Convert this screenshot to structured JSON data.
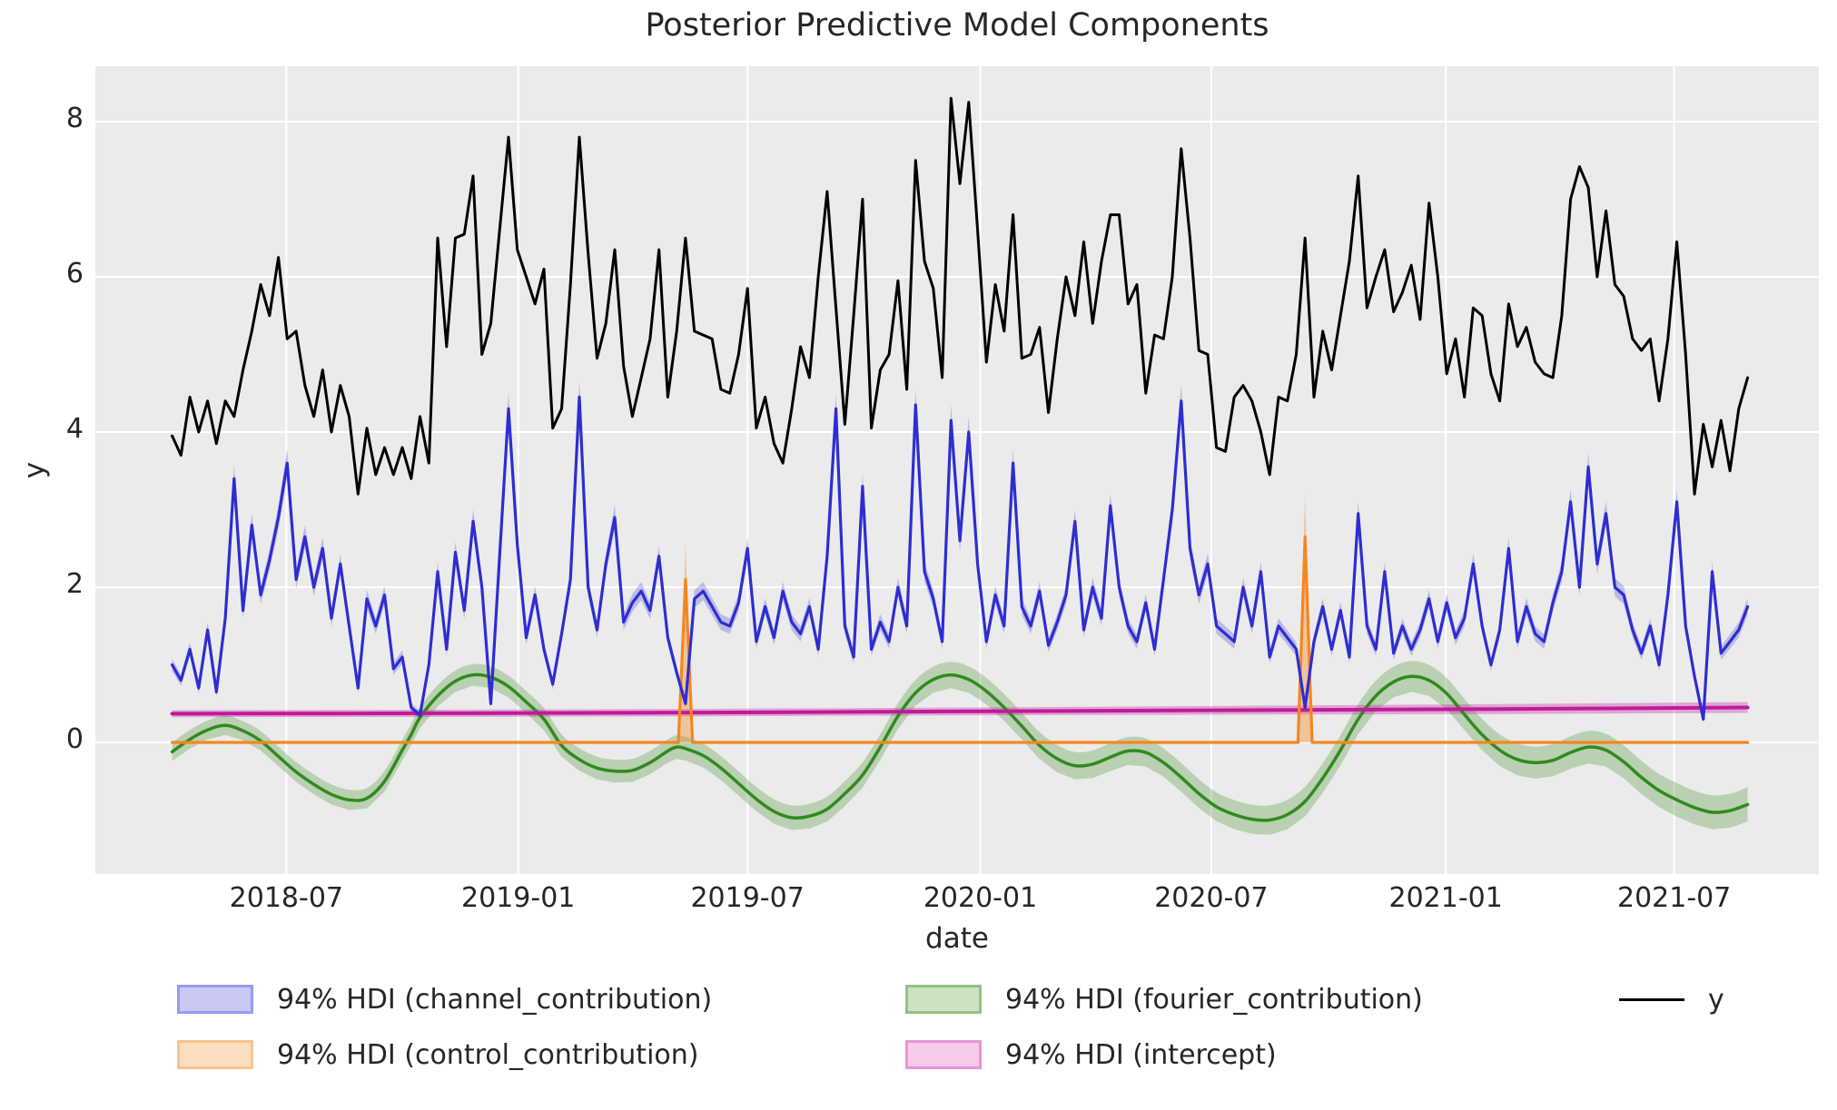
{
  "chart_data": {
    "type": "line",
    "title": "Posterior Predictive Model Components",
    "xlabel": "date",
    "ylabel": "y",
    "x_tick_labels": [
      "2018-07",
      "2019-01",
      "2019-07",
      "2020-01",
      "2020-07",
      "2021-01",
      "2021-07"
    ],
    "x_tick_weeks": [
      12.9,
      39.1,
      65.0,
      91.3,
      117.4,
      143.9,
      169.7
    ],
    "y_tick_labels": [
      "8",
      "6",
      "4",
      "2",
      "0"
    ],
    "y_tick_values": [
      8,
      6,
      4,
      2,
      0
    ],
    "ylim": [
      -1.7,
      8.71
    ],
    "x_range_weeks": [
      0,
      178
    ],
    "n_points": 179,
    "grid": true,
    "plot_background": "#ebebeb",
    "grid_color": "#ffffff",
    "legend_position": "below-two-columns-plus-line",
    "series": [
      {
        "name": "y",
        "legend_label": "y",
        "kind": "line",
        "color": "#000000",
        "values": [
          3.95,
          3.7,
          4.45,
          4.0,
          4.4,
          3.85,
          4.4,
          4.2,
          4.8,
          5.3,
          5.9,
          5.5,
          6.25,
          5.2,
          5.3,
          4.6,
          4.2,
          4.8,
          4.0,
          4.6,
          4.2,
          3.2,
          4.05,
          3.45,
          3.8,
          3.45,
          3.8,
          3.4,
          4.2,
          3.6,
          6.5,
          5.1,
          6.5,
          6.55,
          7.3,
          5.0,
          5.4,
          6.6,
          7.8,
          6.35,
          6.0,
          5.65,
          6.1,
          4.05,
          4.3,
          5.9,
          7.8,
          6.3,
          4.95,
          5.4,
          6.35,
          4.85,
          4.2,
          4.7,
          5.2,
          6.35,
          4.45,
          5.3,
          6.5,
          5.3,
          5.25,
          5.2,
          4.55,
          4.5,
          5.0,
          5.85,
          4.05,
          4.45,
          3.85,
          3.6,
          4.3,
          5.1,
          4.7,
          6.0,
          7.1,
          5.6,
          4.1,
          5.5,
          7.0,
          4.05,
          4.8,
          5.0,
          5.95,
          4.55,
          7.5,
          6.2,
          5.85,
          4.7,
          8.3,
          7.2,
          8.25,
          6.6,
          4.9,
          5.9,
          5.3,
          6.8,
          4.95,
          5.0,
          5.35,
          4.25,
          5.2,
          6.0,
          5.5,
          6.45,
          5.4,
          6.2,
          6.8,
          6.8,
          5.65,
          5.9,
          4.5,
          5.25,
          5.2,
          6.0,
          7.65,
          6.5,
          5.05,
          5.0,
          3.8,
          3.75,
          4.45,
          4.6,
          4.4,
          4.0,
          3.45,
          4.45,
          4.4,
          5.0,
          6.5,
          4.45,
          5.3,
          4.8,
          5.5,
          6.2,
          7.3,
          5.6,
          6.0,
          6.35,
          5.55,
          5.8,
          6.15,
          5.45,
          6.95,
          6.0,
          4.75,
          5.2,
          4.45,
          5.6,
          5.5,
          4.75,
          4.4,
          5.65,
          5.1,
          5.35,
          4.9,
          4.75,
          4.7,
          5.5,
          7.0,
          7.42,
          7.15,
          6.0,
          6.85,
          5.9,
          5.75,
          5.2,
          5.05,
          5.2,
          4.4,
          5.2,
          6.45,
          5.0,
          3.2,
          4.1,
          3.55,
          4.15,
          3.5,
          4.3,
          4.7
        ]
      },
      {
        "name": "channel_contribution",
        "legend_label": "94% HDI (channel_contribution)",
        "kind": "line-with-hdi-band",
        "color": "#2d2dd2",
        "band_color": "rgba(62,62,215,0.28)",
        "hdi_halfwidth_base": 0.04,
        "hdi_halfwidth_scale": 0.04,
        "values": [
          1.0,
          0.8,
          1.2,
          0.7,
          1.45,
          0.65,
          1.6,
          3.4,
          1.7,
          2.8,
          1.9,
          2.35,
          2.9,
          3.6,
          2.1,
          2.65,
          2.0,
          2.5,
          1.6,
          2.3,
          1.5,
          0.7,
          1.85,
          1.5,
          1.9,
          0.95,
          1.1,
          0.45,
          0.35,
          1.0,
          2.2,
          1.2,
          2.45,
          1.7,
          2.85,
          2.0,
          0.5,
          2.4,
          4.3,
          2.55,
          1.35,
          1.9,
          1.2,
          0.75,
          1.4,
          2.1,
          4.45,
          2.0,
          1.45,
          2.3,
          2.9,
          1.55,
          1.8,
          1.95,
          1.7,
          2.4,
          1.35,
          0.9,
          0.5,
          1.85,
          1.95,
          1.75,
          1.55,
          1.5,
          1.8,
          2.5,
          1.3,
          1.75,
          1.35,
          1.95,
          1.55,
          1.4,
          1.75,
          1.2,
          2.4,
          4.3,
          1.5,
          1.1,
          3.3,
          1.2,
          1.55,
          1.3,
          2.0,
          1.5,
          4.35,
          2.2,
          1.85,
          1.3,
          4.15,
          2.6,
          4.0,
          2.3,
          1.3,
          1.9,
          1.5,
          3.6,
          1.75,
          1.5,
          1.95,
          1.25,
          1.55,
          1.9,
          2.85,
          1.45,
          2.0,
          1.6,
          3.05,
          2.0,
          1.5,
          1.3,
          1.8,
          1.2,
          2.1,
          3.0,
          4.4,
          2.5,
          1.9,
          2.3,
          1.5,
          1.4,
          1.3,
          2.0,
          1.5,
          2.2,
          1.1,
          1.5,
          1.35,
          1.2,
          0.45,
          1.3,
          1.75,
          1.2,
          1.7,
          1.1,
          2.95,
          1.5,
          1.2,
          2.2,
          1.15,
          1.5,
          1.2,
          1.45,
          1.85,
          1.3,
          1.8,
          1.35,
          1.6,
          2.3,
          1.5,
          1.0,
          1.45,
          2.5,
          1.3,
          1.75,
          1.4,
          1.3,
          1.8,
          2.2,
          3.1,
          2.0,
          3.55,
          2.3,
          2.95,
          2.0,
          1.9,
          1.45,
          1.15,
          1.5,
          1.0,
          1.9,
          3.1,
          1.5,
          0.85,
          0.3,
          2.2,
          1.15,
          1.3,
          1.45,
          1.75
        ]
      },
      {
        "name": "control_contribution",
        "legend_label": "94% HDI (control_contribution)",
        "kind": "line-with-hdi-band",
        "color": "#f5861f",
        "band_color": "rgba(245,134,31,0.38)",
        "line_keypoints": [
          [
            0,
            0
          ],
          [
            57.2,
            0
          ],
          [
            58,
            2.1
          ],
          [
            58.8,
            0
          ],
          [
            127.2,
            0
          ],
          [
            128,
            2.65
          ],
          [
            128.8,
            0
          ],
          [
            178,
            0
          ]
        ],
        "band_upper_keypoints": [
          [
            0,
            0
          ],
          [
            57.2,
            0
          ],
          [
            58,
            2.55
          ],
          [
            58.8,
            0
          ],
          [
            127.2,
            0
          ],
          [
            128,
            3.2
          ],
          [
            128.8,
            0
          ],
          [
            178,
            0
          ]
        ],
        "band_lower_value": 0,
        "spike_events": [
          {
            "week": 58,
            "near_tick": "2019-05",
            "peak": 2.1,
            "hdi_upper": 2.55
          },
          {
            "week": 128,
            "near_tick": "2020-09",
            "peak": 2.65,
            "hdi_upper": 3.2
          }
        ]
      },
      {
        "name": "fourier_contribution",
        "legend_label": "94% HDI (fourier_contribution)",
        "kind": "smooth-line-with-hdi-band",
        "color": "#2f8b1d",
        "band_color": "rgba(72,146,48,0.30)",
        "keypoints": [
          [
            0,
            -0.12
          ],
          [
            2,
            0.04
          ],
          [
            4,
            0.16
          ],
          [
            6,
            0.22
          ],
          [
            8,
            0.15
          ],
          [
            10,
            0.02
          ],
          [
            12,
            -0.18
          ],
          [
            14,
            -0.38
          ],
          [
            16,
            -0.54
          ],
          [
            18,
            -0.67
          ],
          [
            20,
            -0.74
          ],
          [
            22,
            -0.72
          ],
          [
            24,
            -0.5
          ],
          [
            26,
            -0.1
          ],
          [
            27,
            0.1
          ],
          [
            28,
            0.32
          ],
          [
            30,
            0.6
          ],
          [
            32,
            0.79
          ],
          [
            34,
            0.87
          ],
          [
            36,
            0.84
          ],
          [
            38,
            0.72
          ],
          [
            40,
            0.52
          ],
          [
            42,
            0.3
          ],
          [
            44,
            -0.04
          ],
          [
            46,
            -0.22
          ],
          [
            48,
            -0.33
          ],
          [
            50,
            -0.37
          ],
          [
            52,
            -0.36
          ],
          [
            54,
            -0.26
          ],
          [
            56,
            -0.11
          ],
          [
            57,
            -0.06
          ],
          [
            58,
            -0.08
          ],
          [
            60,
            -0.17
          ],
          [
            62,
            -0.33
          ],
          [
            64,
            -0.53
          ],
          [
            66,
            -0.73
          ],
          [
            68,
            -0.89
          ],
          [
            70,
            -0.97
          ],
          [
            72,
            -0.95
          ],
          [
            74,
            -0.86
          ],
          [
            76,
            -0.66
          ],
          [
            78,
            -0.42
          ],
          [
            80,
            -0.06
          ],
          [
            82,
            0.34
          ],
          [
            84,
            0.64
          ],
          [
            86,
            0.81
          ],
          [
            88,
            0.87
          ],
          [
            90,
            0.81
          ],
          [
            92,
            0.66
          ],
          [
            94,
            0.45
          ],
          [
            96,
            0.21
          ],
          [
            98,
            -0.04
          ],
          [
            100,
            -0.21
          ],
          [
            102,
            -0.3
          ],
          [
            104,
            -0.28
          ],
          [
            106,
            -0.19
          ],
          [
            108,
            -0.11
          ],
          [
            110,
            -0.13
          ],
          [
            112,
            -0.26
          ],
          [
            114,
            -0.45
          ],
          [
            116,
            -0.66
          ],
          [
            118,
            -0.83
          ],
          [
            120,
            -0.93
          ],
          [
            122,
            -0.99
          ],
          [
            124,
            -1.0
          ],
          [
            126,
            -0.93
          ],
          [
            128,
            -0.76
          ],
          [
            130,
            -0.46
          ],
          [
            132,
            -0.1
          ],
          [
            134,
            0.3
          ],
          [
            136,
            0.6
          ],
          [
            138,
            0.78
          ],
          [
            140,
            0.85
          ],
          [
            142,
            0.8
          ],
          [
            144,
            0.63
          ],
          [
            146,
            0.36
          ],
          [
            148,
            0.1
          ],
          [
            150,
            -0.1
          ],
          [
            152,
            -0.22
          ],
          [
            154,
            -0.26
          ],
          [
            156,
            -0.23
          ],
          [
            158,
            -0.13
          ],
          [
            160,
            -0.06
          ],
          [
            162,
            -0.1
          ],
          [
            164,
            -0.25
          ],
          [
            166,
            -0.45
          ],
          [
            168,
            -0.62
          ],
          [
            170,
            -0.74
          ],
          [
            172,
            -0.84
          ],
          [
            174,
            -0.9
          ],
          [
            176,
            -0.88
          ],
          [
            178,
            -0.8
          ]
        ],
        "hdi_halfwidth_keypoints": [
          [
            0,
            0.12
          ],
          [
            90,
            0.17
          ],
          [
            178,
            0.22
          ]
        ]
      },
      {
        "name": "intercept",
        "legend_label": "94% HDI (intercept)",
        "kind": "smooth-line-with-hdi-band",
        "color": "#c01a9b",
        "band_color": "rgba(192,26,155,0.32)",
        "keypoints": [
          [
            0,
            0.37
          ],
          [
            30,
            0.375
          ],
          [
            60,
            0.385
          ],
          [
            90,
            0.4
          ],
          [
            120,
            0.415
          ],
          [
            150,
            0.43
          ],
          [
            178,
            0.45
          ]
        ],
        "hdi_halfwidth_keypoints": [
          [
            0,
            0.045
          ],
          [
            90,
            0.05
          ],
          [
            178,
            0.07
          ]
        ]
      }
    ],
    "legend": [
      {
        "label": "94% HDI (channel_contribution)",
        "type": "patch",
        "fill": "#c9c9f4",
        "border": "#9a9af0"
      },
      {
        "label": "94% HDI (control_contribution)",
        "type": "patch",
        "fill": "#fcdec1",
        "border": "#fac48d"
      },
      {
        "label": "94% HDI (fourier_contribution)",
        "type": "patch",
        "fill": "#cbe2c3",
        "border": "#8fc482"
      },
      {
        "label": "94% HDI (intercept)",
        "type": "patch",
        "fill": "#f6cae9",
        "border": "#eb93d4"
      },
      {
        "label": "y",
        "type": "line",
        "color": "#000000"
      }
    ]
  }
}
